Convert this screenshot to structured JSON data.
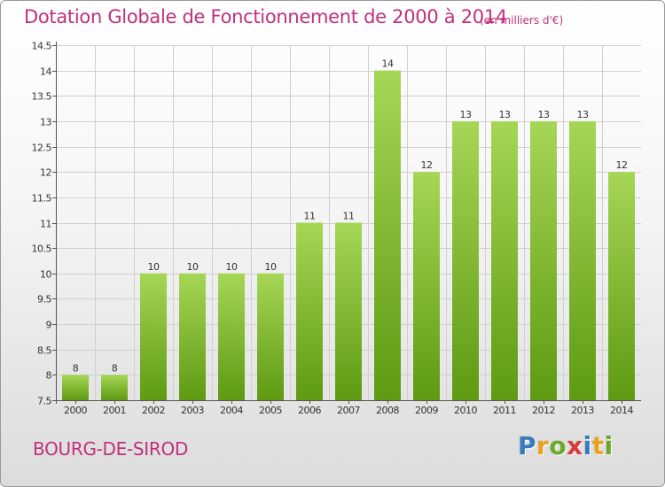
{
  "title": "Dotation Globale de Fonctionnement de 2000 à 2014",
  "subtitle": "(en milliers d'€)",
  "commune": "BOURG-DE-SIROD",
  "logo": {
    "letters": [
      "P",
      "r",
      "o",
      "x",
      "i",
      "t",
      "i"
    ],
    "colors": [
      "#3a7bbf",
      "#e8a21c",
      "#6aaa2a",
      "#d73a3a",
      "#3a7bbf",
      "#e8a21c",
      "#6aaa2a"
    ]
  },
  "colors": {
    "bar_top": "#a6d656",
    "bar_bottom": "#5e9a12",
    "grid": "#d0d0d0",
    "axis": "#555555",
    "text": "#333333"
  },
  "chart_data": {
    "type": "bar",
    "categories": [
      "2000",
      "2001",
      "2002",
      "2003",
      "2004",
      "2005",
      "2006",
      "2007",
      "2008",
      "2009",
      "2010",
      "2011",
      "2012",
      "2013",
      "2014"
    ],
    "values": [
      8,
      8,
      10,
      10,
      10,
      10,
      11,
      11,
      14,
      12,
      13,
      13,
      13,
      13,
      12
    ],
    "data_labels": [
      "8",
      "8",
      "10",
      "10",
      "10",
      "10",
      "11",
      "11",
      "14",
      "12",
      "13",
      "13",
      "13",
      "13",
      "12"
    ],
    "y_ticks": [
      7.5,
      8,
      8.5,
      9,
      9.5,
      10,
      10.5,
      11,
      11.5,
      12,
      12.5,
      13,
      13.5,
      14,
      14.5
    ],
    "y_tick_labels": [
      "7.5",
      "8",
      "8.5",
      "9",
      "9.5",
      "10",
      "10.5",
      "11",
      "11.5",
      "12",
      "12.5",
      "13",
      "13.5",
      "14",
      "14.5"
    ],
    "ylim": [
      7.5,
      14.5
    ],
    "grid": true,
    "legend": "none"
  }
}
